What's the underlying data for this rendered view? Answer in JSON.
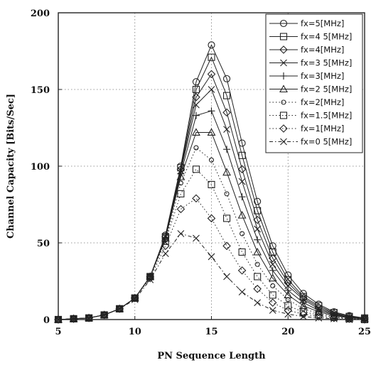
{
  "chart_data": {
    "type": "line",
    "title": "",
    "xlabel": "PN Sequence Length",
    "ylabel": "Channel Capacity [Bits/Sec]",
    "xlim": [
      5,
      25
    ],
    "ylim": [
      0,
      200
    ],
    "xticks": [
      "5",
      "10",
      "15",
      "20",
      "25"
    ],
    "yticks": [
      "0",
      "50",
      "100",
      "150",
      "200"
    ],
    "grid": true,
    "legend_position": "top-right",
    "x": [
      5,
      6,
      7,
      8,
      9,
      10,
      11,
      12,
      13,
      14,
      15,
      16,
      17,
      18,
      19,
      20,
      21,
      22,
      23,
      24,
      25
    ],
    "series": [
      {
        "name": "fx=5[MHz]",
        "marker": "circle",
        "line": "solid",
        "values": [
          0,
          0.5,
          1,
          3,
          7,
          14,
          28,
          55,
          100,
          155,
          179,
          157,
          115,
          77,
          48,
          29,
          17,
          10,
          5,
          2.5,
          1
        ]
      },
      {
        "name": "fx=4 5[MHz]",
        "marker": "square",
        "line": "solid",
        "values": [
          0,
          0.5,
          1,
          3,
          7,
          14,
          28,
          54,
          99,
          150,
          171,
          146,
          107,
          71,
          44,
          26,
          15,
          9,
          4.5,
          2,
          1
        ]
      },
      {
        "name": "fx=4[MHz]",
        "marker": "diamond",
        "line": "solid",
        "values": [
          0,
          0.5,
          1,
          3,
          7,
          14,
          28,
          54,
          98,
          145,
          160,
          135,
          98,
          65,
          40,
          24,
          14,
          8,
          4,
          2,
          1
        ]
      },
      {
        "name": "fx=3 5[MHz]",
        "marker": "x",
        "line": "solid",
        "values": [
          0,
          0.5,
          1,
          3,
          7,
          14,
          28,
          54,
          97,
          140,
          150,
          124,
          90,
          59,
          36,
          22,
          13,
          7,
          3.5,
          1.5,
          0.5
        ]
      },
      {
        "name": "fx=3[MHz]",
        "marker": "plus",
        "line": "solid",
        "values": [
          0,
          0.5,
          1,
          3,
          7,
          14,
          28,
          53,
          95,
          133,
          136,
          111,
          80,
          52,
          32,
          19,
          11,
          6,
          3,
          1.5,
          0.5
        ]
      },
      {
        "name": "fx=2 5[MHz]",
        "marker": "triangle",
        "line": "solid",
        "values": [
          0,
          0.5,
          1,
          3,
          7,
          14,
          28,
          53,
          93,
          122,
          122,
          96,
          68,
          44,
          27,
          16,
          9,
          5,
          2.5,
          1,
          0.5
        ]
      },
      {
        "name": "fx=2[MHz]",
        "marker": "circle-small",
        "line": "dotted",
        "values": [
          0,
          0.5,
          1,
          3,
          7,
          14,
          28,
          52,
          89,
          112,
          104,
          82,
          56,
          36,
          22,
          13,
          7,
          4,
          2,
          1,
          0.5
        ]
      },
      {
        "name": "fx=1.5[MHz]",
        "marker": "square",
        "line": "dotted",
        "values": [
          0,
          0.5,
          1,
          3,
          7,
          14,
          28,
          51,
          82,
          98,
          88,
          66,
          44,
          28,
          16,
          9,
          5,
          3,
          1.5,
          0.5,
          0
        ]
      },
      {
        "name": "fx=1[MHz]",
        "marker": "diamond",
        "line": "dotted",
        "values": [
          0,
          0.5,
          1,
          3,
          7,
          14,
          27,
          48,
          72,
          79,
          66,
          48,
          32,
          20,
          11,
          6,
          3.5,
          2,
          1,
          0.5,
          0
        ]
      },
      {
        "name": "fx=0 5[MHz]",
        "marker": "x",
        "line": "dashdot",
        "values": [
          0,
          0.5,
          1,
          3,
          7,
          13,
          26,
          43,
          56,
          53,
          41,
          28,
          18,
          11,
          6,
          3.5,
          2,
          1,
          0.5,
          0,
          0
        ]
      }
    ]
  }
}
